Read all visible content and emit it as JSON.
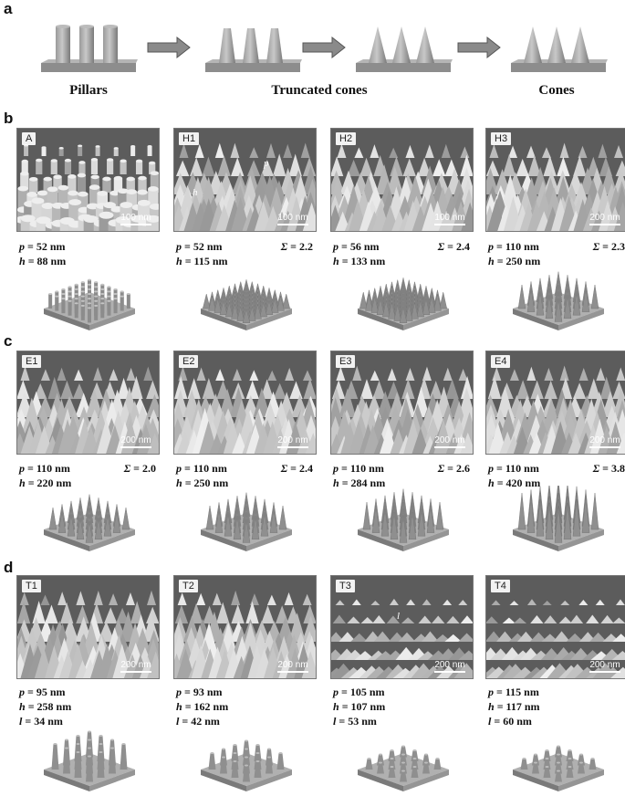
{
  "panel_letters": {
    "a": "a",
    "b": "b",
    "c": "c",
    "d": "d"
  },
  "schematic_labels": {
    "pillars": "Pillars",
    "truncated": "Truncated cones",
    "cones": "Cones"
  },
  "row_b": [
    {
      "tag": "A",
      "scale": "100 nm",
      "p": "52 nm",
      "h": "88 nm",
      "sigma": ""
    },
    {
      "tag": "H1",
      "scale": "100 nm",
      "p": "52 nm",
      "h": "115 nm",
      "sigma": "2.2"
    },
    {
      "tag": "H2",
      "scale": "100 nm",
      "p": "56 nm",
      "h": "133 nm",
      "sigma": "2.4"
    },
    {
      "tag": "H3",
      "scale": "200 nm",
      "p": "110 nm",
      "h": "250 nm",
      "sigma": "2.3"
    }
  ],
  "row_c": [
    {
      "tag": "E1",
      "scale": "200 nm",
      "p": "110 nm",
      "h": "220 nm",
      "sigma": "2.0"
    },
    {
      "tag": "E2",
      "scale": "200 nm",
      "p": "110 nm",
      "h": "250 nm",
      "sigma": "2.4"
    },
    {
      "tag": "E3",
      "scale": "200 nm",
      "p": "110 nm",
      "h": "284 nm",
      "sigma": "2.6"
    },
    {
      "tag": "E4",
      "scale": "200 nm",
      "p": "110 nm",
      "h": "420 nm",
      "sigma": "3.8"
    }
  ],
  "row_d": [
    {
      "tag": "T1",
      "scale": "200 nm",
      "p": "95 nm",
      "h": "258 nm",
      "l": "34 nm"
    },
    {
      "tag": "T2",
      "scale": "200 nm",
      "p": "93 nm",
      "h": "162 nm",
      "l": "42 nm"
    },
    {
      "tag": "T3",
      "scale": "200 nm",
      "p": "105 nm",
      "h": "107 nm",
      "l": "53 nm"
    },
    {
      "tag": "T4",
      "scale": "200 nm",
      "p": "115 nm",
      "h": "117 nm",
      "l": "60 nm"
    }
  ],
  "symbols": {
    "p": "p",
    "h": "h",
    "l": "l",
    "sigma": "Σ",
    "eq": " = "
  },
  "sem_annotations": {
    "h1_p": "p",
    "h1_h": "h",
    "t3_l": "l"
  }
}
